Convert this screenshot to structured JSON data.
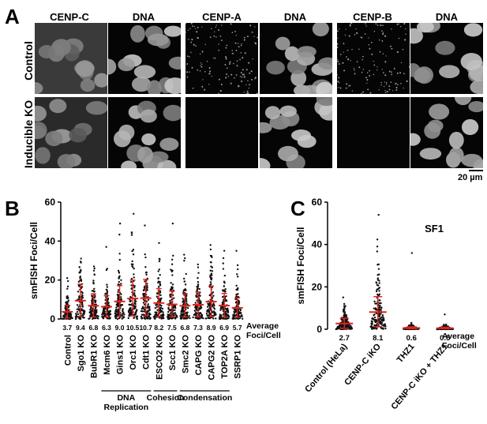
{
  "panel_a": {
    "letter": "A",
    "columns": [
      "CENP-C",
      "DNA",
      "CENP-A",
      "DNA",
      "CENP-B",
      "DNA"
    ],
    "rows": [
      "Control",
      "Inducible KO"
    ],
    "scale_bar_label": "20 µm"
  },
  "chart_data": [
    {
      "panel": "B",
      "type": "scatter",
      "title": "",
      "ylabel": "smFISH Foci/Cell",
      "xlabel": "",
      "ylim": [
        0,
        60
      ],
      "yticks": [
        0,
        20,
        40,
        60
      ],
      "categories": [
        "Control",
        "Sgo1 KO",
        "BubR1 KO",
        "Mcm6 KO",
        "Gins1 KO",
        "Orc1 KO",
        "Cdt1 KO",
        "ESCO2 KO",
        "Scc1 KO",
        "Smc2 KO",
        "CAPG KO",
        "CAPG2 KO",
        "TOP2A KO",
        "SSRP1 KO"
      ],
      "averages": [
        3.7,
        9.4,
        6.8,
        6.3,
        9.0,
        10.5,
        10.7,
        8.2,
        7.5,
        6.8,
        7.3,
        8.9,
        6.9,
        5.7
      ],
      "average_labels": [
        "3.7",
        "9.4",
        "6.8",
        "6.3",
        "9.0",
        "10.5",
        "10.7",
        "8.2",
        "7.5",
        "6.8",
        "7.3",
        "8.9",
        "6.9",
        "5.7"
      ],
      "max_values": [
        21,
        31,
        27,
        37,
        49,
        54,
        48,
        39,
        49,
        33,
        28,
        38,
        35,
        35
      ],
      "average_header": "Average Foci/Cell",
      "groups": [
        {
          "label": "DNA Replication",
          "from": 3,
          "to": 6
        },
        {
          "label": "Cohesion",
          "from": 7,
          "to": 8
        },
        {
          "label": "Condensation",
          "from": 9,
          "to": 12
        }
      ]
    },
    {
      "panel": "C",
      "type": "scatter",
      "title": "SF1",
      "ylabel": "smFISH Foci/Cell",
      "xlabel": "",
      "ylim": [
        0,
        60
      ],
      "yticks": [
        0,
        20,
        40,
        60
      ],
      "categories": [
        "Control (HeLa)",
        "CENP-C iKO",
        "THZ1",
        "CENP-C iKO + THZ1"
      ],
      "averages": [
        2.7,
        8.1,
        0.6,
        0.5
      ],
      "average_labels": [
        "2.7",
        "8.1",
        "0.6",
        "0.5"
      ],
      "max_values": [
        15,
        54,
        36,
        7
      ],
      "average_header": "Average Foci/Cell"
    }
  ]
}
